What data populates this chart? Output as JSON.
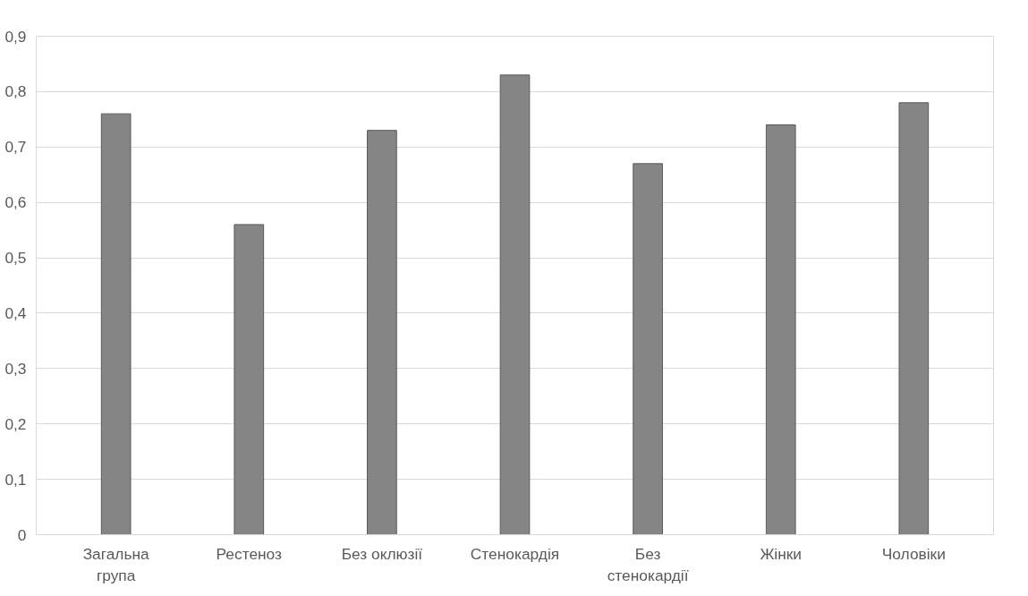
{
  "chart_data": {
    "type": "bar",
    "categories": [
      "Загальна\nгрупа",
      "Рестеноз",
      "Без оклюзії",
      "Стенокардія",
      "Без\nстенокардії",
      "Жінки",
      "Чоловіки"
    ],
    "values": [
      0.76,
      0.56,
      0.73,
      0.83,
      0.67,
      0.74,
      0.78
    ],
    "color": "#858585",
    "ylim": [
      0,
      0.9
    ],
    "yticks": [
      0,
      {
        "value": 0.1,
        "label": "0,1"
      },
      {
        "value": 0.2,
        "label": "0,2"
      },
      {
        "value": 0.3,
        "label": "0,3"
      },
      {
        "value": 0.4,
        "label": "0,4"
      },
      {
        "value": 0.5,
        "label": "0,5"
      },
      {
        "value": 0.6,
        "label": "0,6"
      },
      {
        "value": 0.7,
        "label": "0,7"
      },
      {
        "value": 0.8,
        "label": "0,8"
      },
      {
        "value": 0.9,
        "label": "0,9"
      }
    ],
    "grid": "y"
  }
}
